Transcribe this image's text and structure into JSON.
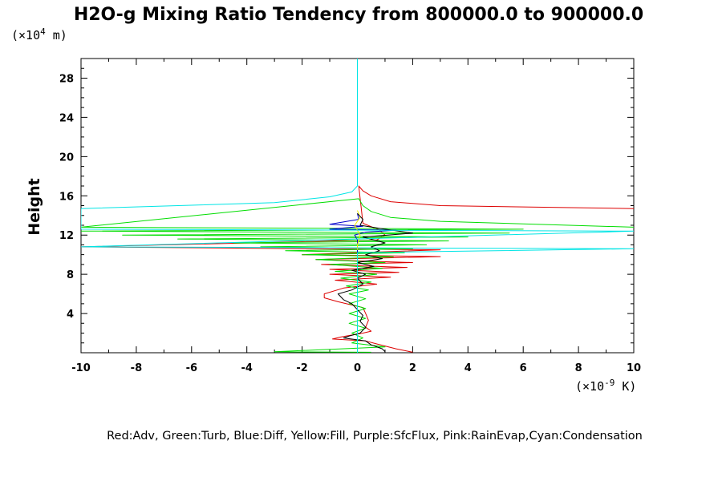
{
  "chart_data": {
    "type": "line",
    "title": "H2O-g Mixing Ratio Tendency from 800000.0 to 900000.0",
    "ylabel": "Height",
    "y_unit_prefix": "(×10",
    "y_unit_exp": "4",
    "y_unit_suffix": " m)",
    "x_unit_prefix": "(×10",
    "x_unit_exp": "-9",
    "x_unit_suffix": " K)",
    "xlim": [
      -10,
      10
    ],
    "ylim": [
      0,
      30
    ],
    "x_ticks": [
      -10,
      -8,
      -6,
      -4,
      -2,
      0,
      2,
      4,
      6,
      8,
      10
    ],
    "y_ticks": [
      4,
      8,
      12,
      16,
      20,
      24,
      28
    ],
    "x_tick_labels": [
      "-10",
      "-8",
      "-6",
      "-4",
      "-2",
      "0",
      "2",
      "4",
      "6",
      "8",
      "10"
    ],
    "y_tick_labels": [
      "4",
      "8",
      "12",
      "16",
      "20",
      "24",
      "28"
    ],
    "legend_text": "Red:Adv, Green:Turb, Blue:Diff, Yellow:Fill, Purple:SfcFlux, Pink:RainEvap,Cyan:Condensation",
    "series": [
      {
        "color": "#dd0000",
        "points": [
          [
            10,
            14.7
          ],
          [
            3,
            15.0
          ],
          [
            1.2,
            15.4
          ],
          [
            0.5,
            16.0
          ],
          [
            0.2,
            16.5
          ],
          [
            0.05,
            17.0
          ],
          [
            0.2,
            13.2
          ],
          [
            0.8,
            12.5
          ],
          [
            1,
            12.0
          ],
          [
            0.7,
            11.5
          ],
          [
            -10,
            10.8
          ],
          [
            3,
            10.5
          ],
          [
            -2,
            10.0
          ],
          [
            3,
            9.8
          ],
          [
            -1.5,
            9.5
          ],
          [
            2,
            9.2
          ],
          [
            -1.3,
            9.0
          ],
          [
            1.8,
            8.7
          ],
          [
            -1,
            8.5
          ],
          [
            1.5,
            8.2
          ],
          [
            -1,
            8.0
          ],
          [
            1.2,
            7.7
          ],
          [
            -0.8,
            7.4
          ],
          [
            0.7,
            7.0
          ],
          [
            -0.5,
            6.6
          ],
          [
            -1.2,
            6.0
          ],
          [
            -1.2,
            5.6
          ],
          [
            -0.7,
            5.2
          ],
          [
            0.2,
            4.6
          ],
          [
            0.3,
            4.0
          ],
          [
            0.4,
            3.3
          ],
          [
            0.3,
            2.6
          ],
          [
            0.5,
            2.2
          ],
          [
            0.2,
            2.0
          ],
          [
            -0.6,
            1.6
          ],
          [
            -0.9,
            1.4
          ],
          [
            0.3,
            1.2
          ],
          [
            0.7,
            0.9
          ],
          [
            1.4,
            0.4
          ],
          [
            2.0,
            0.05
          ]
        ]
      },
      {
        "color": "#00dd00",
        "points": [
          [
            10,
            12.8
          ],
          [
            3,
            13.4
          ],
          [
            1.2,
            13.8
          ],
          [
            0.5,
            14.4
          ],
          [
            0.2,
            15.0
          ],
          [
            0.05,
            15.7
          ],
          [
            -10,
            12.8
          ],
          [
            6,
            12.6
          ],
          [
            -10,
            12.4
          ],
          [
            5.5,
            12.2
          ],
          [
            -8.5,
            12.0
          ],
          [
            4,
            11.8
          ],
          [
            -6.5,
            11.6
          ],
          [
            3.3,
            11.4
          ],
          [
            -4.5,
            11.2
          ],
          [
            2.5,
            11.0
          ],
          [
            -3.5,
            10.8
          ],
          [
            2,
            10.6
          ],
          [
            -2.6,
            10.4
          ],
          [
            1.7,
            10.2
          ],
          [
            -2,
            10.0
          ],
          [
            1.3,
            9.8
          ],
          [
            -1.5,
            9.5
          ],
          [
            1,
            9.2
          ],
          [
            -1,
            9.0
          ],
          [
            0.9,
            8.6
          ],
          [
            -0.8,
            8.3
          ],
          [
            0.7,
            8.0
          ],
          [
            -0.6,
            7.6
          ],
          [
            0.5,
            7.2
          ],
          [
            -0.4,
            6.8
          ],
          [
            0.4,
            6.4
          ],
          [
            -0.3,
            6.0
          ],
          [
            0.3,
            5.5
          ],
          [
            -0.3,
            5.0
          ],
          [
            0.3,
            4.5
          ],
          [
            -0.3,
            4.0
          ],
          [
            0.3,
            3.5
          ],
          [
            -0.3,
            3.0
          ],
          [
            0.3,
            2.5
          ],
          [
            -0.2,
            2.0
          ],
          [
            0.2,
            1.5
          ],
          [
            -0.2,
            1.0
          ],
          [
            1.0,
            0.6
          ],
          [
            -3.0,
            0.1
          ],
          [
            0.5,
            0.05
          ]
        ]
      },
      {
        "color": "#0000cc",
        "points": [
          [
            0,
            14.2
          ],
          [
            0.05,
            13.6
          ],
          [
            -1.0,
            13.1
          ],
          [
            0.2,
            12.9
          ],
          [
            -1.0,
            12.6
          ],
          [
            1.4,
            12.5
          ],
          [
            0.3,
            12.3
          ],
          [
            -0.1,
            12.0
          ],
          [
            0,
            11.5
          ],
          [
            0,
            10.0
          ]
        ]
      },
      {
        "color": "#eeee00",
        "points": [
          [
            0,
            14.5
          ],
          [
            0.1,
            13.8
          ],
          [
            -0.1,
            13.0
          ],
          [
            0.1,
            12.0
          ],
          [
            0,
            11.0
          ],
          [
            0,
            10.5
          ]
        ]
      },
      {
        "color": "#000000",
        "points": [
          [
            0,
            14.2
          ],
          [
            0.2,
            13.6
          ],
          [
            0.1,
            13.0
          ],
          [
            1.0,
            12.6
          ],
          [
            2.0,
            12.2
          ],
          [
            0.2,
            11.8
          ],
          [
            1.0,
            11.2
          ],
          [
            0.5,
            10.8
          ],
          [
            0.8,
            10.4
          ],
          [
            0.3,
            10.0
          ],
          [
            0.9,
            9.6
          ],
          [
            0,
            9.2
          ],
          [
            0.6,
            8.8
          ],
          [
            -0.2,
            8.4
          ],
          [
            0.3,
            8.0
          ],
          [
            0,
            7.6
          ],
          [
            0.2,
            7.0
          ],
          [
            -0.2,
            6.4
          ],
          [
            -0.7,
            6.0
          ],
          [
            -0.5,
            5.4
          ],
          [
            -0.2,
            5.0
          ],
          [
            0,
            4.4
          ],
          [
            0.2,
            3.8
          ],
          [
            0.1,
            3.2
          ],
          [
            0.3,
            2.6
          ],
          [
            0.1,
            2.0
          ],
          [
            -0.3,
            1.7
          ],
          [
            -0.5,
            1.5
          ],
          [
            0.3,
            1.2
          ],
          [
            0.5,
            0.8
          ],
          [
            0.9,
            0.4
          ],
          [
            1.0,
            0.1
          ]
        ]
      },
      {
        "color": "#00e5e5",
        "points": [
          [
            0,
            30
          ],
          [
            0,
            18
          ],
          [
            0,
            17.0
          ],
          [
            -0.2,
            16.4
          ],
          [
            -1,
            15.9
          ],
          [
            -3,
            15.3
          ],
          [
            -10,
            14.7
          ],
          [
            -10,
            12.6
          ],
          [
            10,
            12.4
          ],
          [
            -10,
            10.8
          ],
          [
            10,
            10.6
          ],
          [
            0,
            10.2
          ],
          [
            0,
            0
          ]
        ]
      }
    ]
  }
}
